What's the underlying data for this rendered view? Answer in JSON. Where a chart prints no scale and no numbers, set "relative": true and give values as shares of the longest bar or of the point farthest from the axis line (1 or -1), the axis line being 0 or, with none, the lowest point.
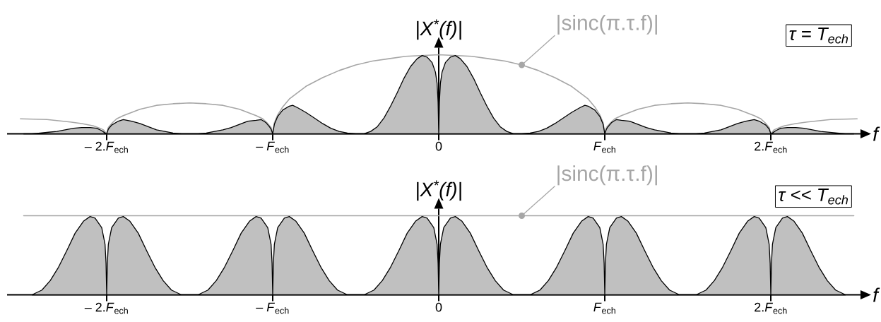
{
  "chart_data": [
    {
      "type": "area",
      "relative": true,
      "xlim": [
        -2.6,
        2.54
      ],
      "xticks": [
        {
          "value": -2,
          "label": "– 2.*F*$_{ech}$"
        },
        {
          "value": -1,
          "label": "– *F*$_{ech}$"
        },
        0,
        {
          "value": 1,
          "label": "*F*$_{ech}$"
        },
        {
          "value": 2,
          "label": "2.*F*$_{ech}$"
        }
      ],
      "xlabel": "f",
      "ylabel": "|X$^{*}$(f)|",
      "annotations": [
        {
          "text": "|sinc(π.τ.f)|",
          "x": 0.5,
          "y": 0.87
        },
        "τ = T$_{ech}$"
      ],
      "series": [
        {
          "type": "line",
          "color": "#a6a6a6",
          "x": [
            -2.52,
            -2.36,
            -2.22,
            -2.15,
            -2.08,
            -2.04,
            -2.02,
            -2,
            -1.99,
            -1.97,
            -1.94,
            -1.9,
            -1.8,
            -1.7,
            -1.6,
            -1.5,
            -1.4,
            -1.3,
            -1.2,
            -1.1,
            -1.06,
            -1.03,
            -1.01,
            -1,
            -0.99,
            -0.97,
            -0.94,
            -0.9,
            -0.8,
            -0.7,
            -0.6,
            -0.5,
            -0.4,
            -0.3,
            -0.2,
            0,
            0.2,
            0.3,
            0.4,
            0.5,
            0.6,
            0.7,
            0.8,
            0.9,
            0.94,
            0.97,
            0.99,
            1,
            1.01,
            1.03,
            1.06,
            1.1,
            1.2,
            1.3,
            1.4,
            1.5,
            1.6,
            1.7,
            1.8,
            1.9,
            1.94,
            1.97,
            1.99,
            2,
            2.02,
            2.04,
            2.08,
            2.15,
            2.22,
            2.36,
            2.52
          ],
          "values": [
            0.19,
            0.18,
            0.15,
            0.13,
            0.1,
            0.07,
            0.05,
            0,
            0.08,
            0.13,
            0.19,
            0.23,
            0.31,
            0.36,
            0.38,
            0.39,
            0.38,
            0.36,
            0.31,
            0.23,
            0.19,
            0.13,
            0.08,
            0,
            0.14,
            0.24,
            0.34,
            0.44,
            0.6,
            0.71,
            0.8,
            0.87,
            0.92,
            0.95,
            0.98,
            1,
            0.98,
            0.95,
            0.92,
            0.87,
            0.8,
            0.71,
            0.6,
            0.44,
            0.34,
            0.24,
            0.14,
            0,
            0.08,
            0.13,
            0.19,
            0.23,
            0.31,
            0.36,
            0.38,
            0.39,
            0.38,
            0.36,
            0.31,
            0.23,
            0.19,
            0.13,
            0.08,
            0,
            0.05,
            0.07,
            0.1,
            0.13,
            0.15,
            0.18,
            0.19
          ]
        },
        {
          "color": "#c0c0c0",
          "x": [
            -2.5,
            -2.45,
            -2.4,
            -2.35,
            -2.3,
            -2.25,
            -2.2,
            -2.15,
            -2.1,
            -2.06,
            -2.03,
            -2.01,
            -2,
            -1.99,
            -1.97,
            -1.93,
            -1.9,
            -1.85,
            -1.8,
            -1.75,
            -1.7,
            -1.65,
            -1.6,
            -1.55,
            -1.45,
            -1.4,
            -1.35,
            -1.3,
            -1.25,
            -1.2,
            -1.15,
            -1.1,
            -1.07,
            -1.04,
            -1.02,
            -1.01,
            -1,
            -0.99,
            -0.97,
            -0.94,
            -0.9,
            -0.88,
            -0.85,
            -0.8,
            -0.75,
            -0.7,
            -0.65,
            -0.6,
            -0.55,
            -0.5,
            -0.45,
            -0.41,
            -0.37,
            -0.33,
            -0.29,
            -0.25,
            -0.21,
            -0.17,
            -0.13,
            -0.1,
            -0.07,
            -0.04,
            -0.02,
            -0.01,
            -0.004,
            0,
            0.004,
            0.01,
            0.02,
            0.04,
            0.07,
            0.1,
            0.13,
            0.17,
            0.21,
            0.25,
            0.29,
            0.33,
            0.37,
            0.41,
            0.45,
            0.5,
            0.55,
            0.6,
            0.65,
            0.7,
            0.75,
            0.8,
            0.85,
            0.88,
            0.9,
            0.94,
            0.97,
            0.99,
            1,
            1.01,
            1.02,
            1.04,
            1.07,
            1.1,
            1.15,
            1.2,
            1.25,
            1.3,
            1.35,
            1.4,
            1.45,
            1.55,
            1.6,
            1.65,
            1.7,
            1.75,
            1.8,
            1.85,
            1.9,
            1.93,
            1.97,
            1.99,
            2,
            2.01,
            2.03,
            2.06,
            2.1,
            2.15,
            2.2,
            2.25,
            2.3,
            2.35,
            2.4,
            2.45,
            2.5
          ],
          "values": [
            0,
            0,
            0.01,
            0.02,
            0.03,
            0.05,
            0.07,
            0.08,
            0.08,
            0.07,
            0.04,
            0.01,
            0,
            0.06,
            0.11,
            0.16,
            0.18,
            0.16,
            0.13,
            0.09,
            0.05,
            0.03,
            0.01,
            0,
            0,
            0.01,
            0.03,
            0.05,
            0.08,
            0.12,
            0.16,
            0.17,
            0.18,
            0.14,
            0.09,
            0.06,
            0,
            0.12,
            0.22,
            0.3,
            0.35,
            0.36,
            0.33,
            0.27,
            0.2,
            0.13,
            0.07,
            0.03,
            0.01,
            0,
            0,
            0.03,
            0.09,
            0.2,
            0.35,
            0.52,
            0.7,
            0.85,
            0.95,
            0.99,
            0.97,
            0.9,
            0.78,
            0.64,
            0.4,
            0,
            0.4,
            0.64,
            0.78,
            0.9,
            0.97,
            0.99,
            0.95,
            0.85,
            0.7,
            0.52,
            0.35,
            0.2,
            0.09,
            0.03,
            0,
            0,
            0.01,
            0.03,
            0.07,
            0.13,
            0.2,
            0.27,
            0.33,
            0.36,
            0.35,
            0.3,
            0.22,
            0.12,
            0,
            0.06,
            0.09,
            0.14,
            0.18,
            0.17,
            0.16,
            0.12,
            0.08,
            0.05,
            0.03,
            0.01,
            0,
            0,
            0.01,
            0.03,
            0.05,
            0.09,
            0.13,
            0.16,
            0.18,
            0.16,
            0.11,
            0.06,
            0,
            0.01,
            0.04,
            0.07,
            0.08,
            0.08,
            0.07,
            0.05,
            0.03,
            0.02,
            0.01,
            0,
            0
          ]
        }
      ]
    },
    {
      "type": "area",
      "relative": true,
      "xlim": [
        -2.6,
        2.54
      ],
      "xticks": [
        {
          "value": -2,
          "label": "– 2.*F*$_{ech}$"
        },
        {
          "value": -1,
          "label": "– *F*$_{ech}$"
        },
        0,
        {
          "value": 1,
          "label": "*F*$_{ech}$"
        },
        {
          "value": 2,
          "label": "2.*F*$_{ech}$"
        }
      ],
      "xlabel": "f",
      "ylabel": "|X$^{*}$(f)|",
      "annotations": [
        {
          "text": "|sinc(π.τ.f)|",
          "x": 0.5,
          "y": 1
        },
        "τ << T$_{ech}$"
      ],
      "series": [
        {
          "type": "line",
          "color": "#a6a6a6",
          "x": [
            -2.5,
            2.5
          ],
          "values": [
            1,
            1
          ]
        },
        {
          "color": "#c0c0c0",
          "x": [
            -2.45,
            -2.39,
            -2.34,
            -2.29,
            -2.24,
            -2.19,
            -2.14,
            -2.1,
            -2.07,
            -2.03,
            -2.01,
            -2.004,
            -2,
            -1.996,
            -1.99,
            -1.97,
            -1.93,
            -1.9,
            -1.86,
            -1.81,
            -1.76,
            -1.71,
            -1.66,
            -1.61,
            -1.55,
            -1.45,
            -1.39,
            -1.34,
            -1.29,
            -1.24,
            -1.19,
            -1.14,
            -1.1,
            -1.07,
            -1.03,
            -1.01,
            -1.004,
            -1,
            -0.996,
            -0.99,
            -0.97,
            -0.93,
            -0.9,
            -0.86,
            -0.81,
            -0.76,
            -0.71,
            -0.66,
            -0.61,
            -0.55,
            -0.45,
            -0.39,
            -0.34,
            -0.29,
            -0.24,
            -0.19,
            -0.14,
            -0.1,
            -0.07,
            -0.03,
            -0.01,
            -0.004,
            0,
            0.004,
            0.01,
            0.03,
            0.07,
            0.1,
            0.14,
            0.19,
            0.24,
            0.29,
            0.34,
            0.39,
            0.45,
            0.55,
            0.61,
            0.66,
            0.71,
            0.76,
            0.81,
            0.86,
            0.9,
            0.93,
            0.97,
            0.99,
            0.996,
            1,
            1.004,
            1.01,
            1.03,
            1.07,
            1.1,
            1.14,
            1.19,
            1.24,
            1.29,
            1.34,
            1.39,
            1.45,
            1.55,
            1.61,
            1.66,
            1.71,
            1.76,
            1.81,
            1.86,
            1.9,
            1.93,
            1.97,
            1.99,
            1.996,
            2,
            2.004,
            2.01,
            2.03,
            2.07,
            2.1,
            2.14,
            2.19,
            2.24,
            2.29,
            2.34,
            2.39,
            2.45
          ],
          "values": [
            0,
            0.06,
            0.18,
            0.35,
            0.56,
            0.78,
            0.93,
            0.99,
            0.97,
            0.85,
            0.64,
            0.4,
            0,
            0.4,
            0.64,
            0.85,
            0.97,
            0.99,
            0.93,
            0.78,
            0.56,
            0.35,
            0.18,
            0.06,
            0,
            0,
            0.06,
            0.18,
            0.35,
            0.56,
            0.78,
            0.93,
            0.99,
            0.97,
            0.85,
            0.64,
            0.4,
            0,
            0.4,
            0.64,
            0.85,
            0.97,
            0.99,
            0.93,
            0.78,
            0.56,
            0.35,
            0.18,
            0.06,
            0,
            0,
            0.06,
            0.18,
            0.35,
            0.56,
            0.78,
            0.93,
            0.99,
            0.97,
            0.85,
            0.64,
            0.4,
            0,
            0.4,
            0.64,
            0.85,
            0.97,
            0.99,
            0.93,
            0.78,
            0.56,
            0.35,
            0.18,
            0.06,
            0,
            0,
            0.06,
            0.18,
            0.35,
            0.56,
            0.78,
            0.93,
            0.99,
            0.97,
            0.85,
            0.64,
            0.4,
            0,
            0.4,
            0.64,
            0.85,
            0.97,
            0.99,
            0.93,
            0.78,
            0.56,
            0.35,
            0.18,
            0.06,
            0,
            0,
            0.06,
            0.18,
            0.35,
            0.56,
            0.78,
            0.93,
            0.99,
            0.97,
            0.85,
            0.64,
            0.4,
            0,
            0.4,
            0.64,
            0.85,
            0.97,
            0.99,
            0.93,
            0.78,
            0.56,
            0.35,
            0.18,
            0.06,
            0
          ]
        }
      ]
    }
  ]
}
